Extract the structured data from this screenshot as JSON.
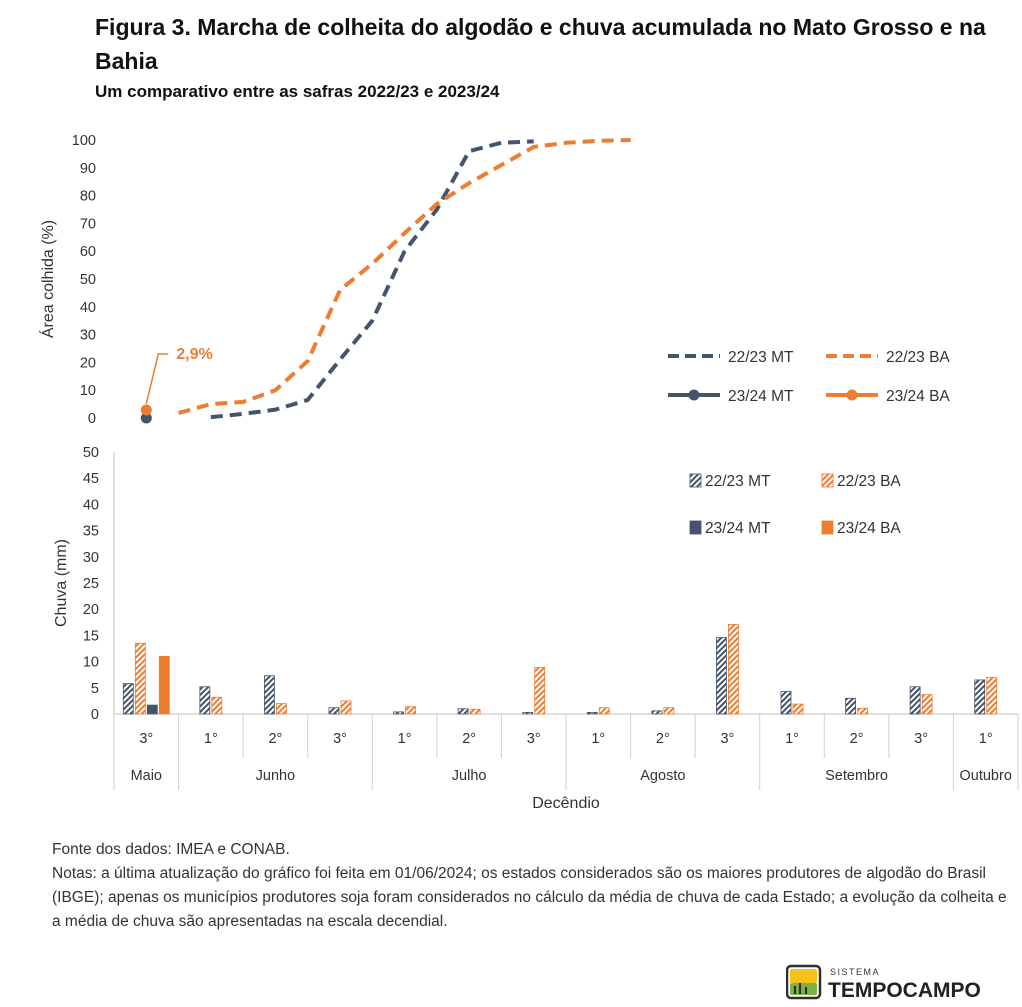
{
  "title": "Figura 3. Marcha de colheita do algodão e chuva acumulada no Mato Grosso e na Bahia",
  "subtitle": "Um comparativo entre as safras 2022/23 e 2023/24",
  "colors": {
    "mt": "#44546a",
    "ba": "#ed7d31"
  },
  "chart_data": [
    {
      "type": "line",
      "ylabel": "Área colhida (%)",
      "ylim": [
        0,
        100
      ],
      "yticks": [
        "0",
        "10",
        "20",
        "30",
        "40",
        "50",
        "60",
        "70",
        "80",
        "90",
        "100"
      ],
      "x_slots": 19,
      "series": [
        {
          "name": "22/23 MT",
          "style": "dashed",
          "color": "#44546a",
          "x": [
            2,
            3,
            4,
            5,
            6,
            7,
            8,
            9,
            10,
            11,
            12
          ],
          "y": [
            0.3,
            1.5,
            3,
            6.5,
            21,
            35,
            60,
            75,
            96,
            99,
            99.5
          ]
        },
        {
          "name": "22/23 BA",
          "style": "dashed",
          "color": "#ed7d31",
          "x": [
            1,
            2,
            3,
            4,
            5,
            6,
            7,
            8,
            9,
            10,
            11,
            12,
            13,
            14,
            15
          ],
          "y": [
            1.8,
            5,
            5.8,
            10,
            20.5,
            46,
            55.5,
            66.5,
            77,
            84.5,
            91,
            97.5,
            99,
            99.7,
            100
          ]
        },
        {
          "name": "23/24 MT",
          "style": "solid-marker",
          "color": "#44546a",
          "x": [
            0
          ],
          "y": [
            0
          ]
        },
        {
          "name": "23/24 BA",
          "style": "solid-marker",
          "color": "#ed7d31",
          "x": [
            0
          ],
          "y": [
            2.9
          ]
        }
      ],
      "annotation": {
        "text": "2,9%",
        "series": "23/24 BA",
        "x": 0,
        "y": 2.9
      },
      "legend": "center-right"
    },
    {
      "type": "bar",
      "ylabel": "Chuva (mm)",
      "xlabel": "Decêndio",
      "ylim": [
        0,
        50
      ],
      "yticks": [
        "0",
        "5",
        "10",
        "15",
        "20",
        "25",
        "30",
        "35",
        "40",
        "45",
        "50"
      ],
      "categories": [
        "3°",
        "1°",
        "2°",
        "3°",
        "1°",
        "2°",
        "3°",
        "1°",
        "2°",
        "3°",
        "1°",
        "2°",
        "3°",
        "1°"
      ],
      "months": [
        {
          "label": "Maio",
          "span": 1
        },
        {
          "label": "Junho",
          "span": 3
        },
        {
          "label": "Julho",
          "span": 3
        },
        {
          "label": "Agosto",
          "span": 3
        },
        {
          "label": "Setembro",
          "span": 3
        },
        {
          "label": "Outubro",
          "span": 1
        }
      ],
      "series": [
        {
          "name": "22/23 MT",
          "pattern": "hatched",
          "color": "#44546a",
          "values": [
            5.8,
            5.2,
            7.3,
            1.2,
            0.4,
            1.0,
            0.3,
            0.3,
            0.6,
            14.6,
            4.3,
            3.0,
            5.2,
            6.5
          ]
        },
        {
          "name": "22/23 BA",
          "pattern": "hatched",
          "color": "#ed7d31",
          "values": [
            13.5,
            3.2,
            2.0,
            2.5,
            1.4,
            0.9,
            8.9,
            1.2,
            1.2,
            17.1,
            1.9,
            1.1,
            3.7,
            7.0
          ]
        },
        {
          "name": "23/24 MT",
          "pattern": "solid",
          "color": "#44546a",
          "values": [
            1.7,
            null,
            null,
            null,
            null,
            null,
            null,
            null,
            null,
            null,
            null,
            null,
            null,
            null
          ]
        },
        {
          "name": "23/24 BA",
          "pattern": "solid",
          "color": "#ed7d31",
          "values": [
            11.0,
            null,
            null,
            null,
            null,
            null,
            null,
            null,
            null,
            null,
            null,
            null,
            null,
            null
          ]
        }
      ],
      "legend": "top-right"
    }
  ],
  "notes": {
    "source": "Fonte dos dados: IMEA e CONAB.",
    "text": "Notas: a última atualização do gráfico foi feita em 01/06/2024; os estados considerados são os maiores produtores de algodão do Brasil (IBGE); apenas os municípios produtores soja foram considerados no cálculo da média de chuva de cada Estado; a evolução da colheita e a média de chuva são apresentadas na escala decendial."
  },
  "logo": {
    "top": "SISTEMA",
    "main": "TEMPOCAMPO"
  }
}
